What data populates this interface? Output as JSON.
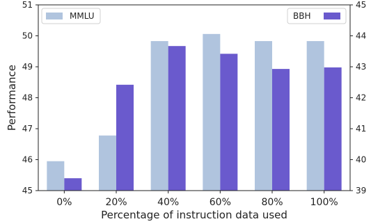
{
  "chart_data": {
    "type": "bar",
    "title": "",
    "xlabel": "Percentage of instruction data used",
    "ylabel": "Performance",
    "categories": [
      "0%",
      "20%",
      "40%",
      "60%",
      "80%",
      "100%"
    ],
    "series": [
      {
        "name": "MMLU",
        "axis": "left",
        "color": "#b0c4de",
        "values": [
          45.95,
          46.78,
          49.83,
          50.06,
          49.83,
          49.83
        ]
      },
      {
        "name": "BBH",
        "axis": "right",
        "color": "#6a5acd",
        "values": [
          39.4,
          42.42,
          43.67,
          43.42,
          42.93,
          42.98
        ]
      }
    ],
    "y_left": {
      "lim": [
        45,
        51
      ],
      "ticks": [
        "45",
        "46",
        "47",
        "48",
        "49",
        "50",
        "51"
      ]
    },
    "y_right": {
      "lim": [
        39,
        45
      ],
      "ticks": [
        "39",
        "40",
        "41",
        "42",
        "43",
        "44",
        "45"
      ]
    },
    "grid": false,
    "legend": [
      {
        "series": "MMLU",
        "placement": "top-left"
      },
      {
        "series": "BBH",
        "placement": "top-right"
      }
    ]
  }
}
